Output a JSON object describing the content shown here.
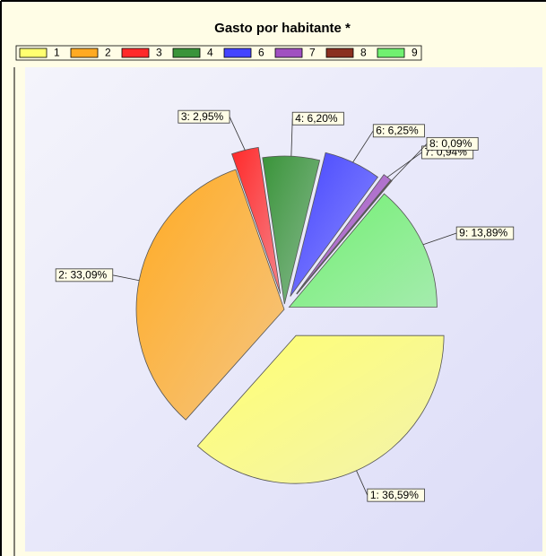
{
  "chart_data": {
    "type": "pie",
    "title": "Gasto por habitante *",
    "categories": [
      "1",
      "2",
      "3",
      "4",
      "6",
      "7",
      "8",
      "9"
    ],
    "values": [
      36.59,
      33.09,
      2.95,
      6.2,
      6.25,
      0.94,
      0.09,
      13.89
    ],
    "value_labels": [
      "1: 36,59%",
      "2: 33,09%",
      "3: 2,95%",
      "4: 6,20%",
      "6: 6,25%",
      "7: 0,94%",
      "8: 0,09%",
      "9: 13,89%"
    ],
    "colors": [
      "#ffff70",
      "#ffaa22",
      "#ff2a2a",
      "#3a943a",
      "#4444ff",
      "#a050c0",
      "#8a3020",
      "#70f070"
    ],
    "legend": "top"
  }
}
